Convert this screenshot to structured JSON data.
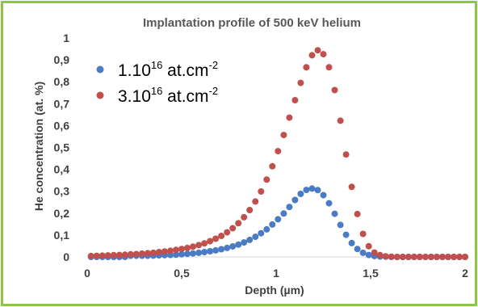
{
  "colors": {
    "frame": "#8dc63f",
    "series1": "#4a7bc4",
    "series2": "#c0504d",
    "axis": "#d9d9d9",
    "text": "#404040"
  },
  "chart_data": {
    "type": "scatter",
    "title": "Implantation profile of 500 keV helium",
    "xlabel": "Depth (µm)",
    "ylabel": "He concentration (at. %)",
    "xlim": [
      0,
      2
    ],
    "ylim": [
      0,
      1
    ],
    "x_ticks": [
      "0",
      "0,5",
      "1",
      "1,5",
      "2"
    ],
    "x_tick_values": [
      0,
      0.5,
      1,
      1.5,
      2
    ],
    "y_ticks": [
      "0",
      "0,1",
      "0,2",
      "0,3",
      "0,4",
      "0,5",
      "0,6",
      "0,7",
      "0,8",
      "0,9",
      "1"
    ],
    "y_tick_values": [
      0,
      0.1,
      0.2,
      0.3,
      0.4,
      0.5,
      0.6,
      0.7,
      0.8,
      0.9,
      1
    ],
    "grid": false,
    "legend_position": "top-left",
    "series": [
      {
        "name": "1.10¹⁶ at.cm⁻²",
        "legend": {
          "base": "1.10",
          "exp": "16",
          "unit": " at.cm",
          "unit_exp": "-2"
        },
        "x": [
          0.02,
          0.05,
          0.08,
          0.11,
          0.14,
          0.17,
          0.2,
          0.23,
          0.26,
          0.29,
          0.32,
          0.35,
          0.38,
          0.41,
          0.44,
          0.47,
          0.5,
          0.53,
          0.56,
          0.59,
          0.62,
          0.65,
          0.68,
          0.71,
          0.74,
          0.77,
          0.8,
          0.83,
          0.86,
          0.89,
          0.92,
          0.95,
          0.98,
          1.01,
          1.04,
          1.07,
          1.1,
          1.13,
          1.16,
          1.19,
          1.22,
          1.25,
          1.28,
          1.31,
          1.34,
          1.37,
          1.4,
          1.43,
          1.46,
          1.49,
          1.52,
          1.55,
          1.58,
          1.61,
          1.64,
          1.67,
          1.7,
          1.73,
          1.76,
          1.79,
          1.82,
          1.85,
          1.88,
          1.91,
          1.94,
          1.97,
          2.0
        ],
        "y": [
          0.0,
          0.0,
          0.0,
          0.0,
          0.0,
          0.0,
          0.0,
          0.005,
          0.005,
          0.005,
          0.005,
          0.006,
          0.007,
          0.008,
          0.009,
          0.01,
          0.012,
          0.014,
          0.016,
          0.019,
          0.022,
          0.026,
          0.03,
          0.035,
          0.041,
          0.048,
          0.056,
          0.066,
          0.078,
          0.092,
          0.108,
          0.126,
          0.148,
          0.172,
          0.198,
          0.228,
          0.26,
          0.288,
          0.306,
          0.312,
          0.305,
          0.282,
          0.245,
          0.197,
          0.146,
          0.101,
          0.063,
          0.036,
          0.019,
          0.009,
          0.004,
          0.002,
          0.001,
          0.0,
          0.0,
          0.0,
          0.0,
          0.0,
          0.0,
          0.0,
          0.0,
          0.0,
          0.0,
          0.0,
          0.0,
          0.0,
          0.0
        ]
      },
      {
        "name": "3.10¹⁶ at.cm⁻²",
        "legend": {
          "base": "3.10",
          "exp": "16",
          "unit": " at.cm",
          "unit_exp": "-2"
        },
        "x": [
          0.02,
          0.05,
          0.08,
          0.11,
          0.14,
          0.17,
          0.2,
          0.23,
          0.26,
          0.29,
          0.32,
          0.35,
          0.38,
          0.41,
          0.44,
          0.47,
          0.5,
          0.53,
          0.56,
          0.59,
          0.62,
          0.65,
          0.68,
          0.71,
          0.74,
          0.77,
          0.8,
          0.83,
          0.86,
          0.89,
          0.92,
          0.95,
          0.98,
          1.01,
          1.04,
          1.07,
          1.1,
          1.13,
          1.16,
          1.19,
          1.22,
          1.25,
          1.28,
          1.31,
          1.34,
          1.37,
          1.4,
          1.43,
          1.46,
          1.49,
          1.52,
          1.55,
          1.58,
          1.61,
          1.64,
          1.67,
          1.7,
          1.73,
          1.76,
          1.79,
          1.82,
          1.85,
          1.88,
          1.91,
          1.94,
          1.97,
          2.0
        ],
        "y": [
          0.004,
          0.005,
          0.006,
          0.007,
          0.008,
          0.009,
          0.01,
          0.012,
          0.013,
          0.015,
          0.017,
          0.019,
          0.022,
          0.025,
          0.028,
          0.032,
          0.036,
          0.041,
          0.047,
          0.054,
          0.062,
          0.072,
          0.083,
          0.096,
          0.112,
          0.131,
          0.154,
          0.181,
          0.214,
          0.253,
          0.299,
          0.353,
          0.414,
          0.483,
          0.557,
          0.636,
          0.716,
          0.795,
          0.866,
          0.921,
          0.944,
          0.926,
          0.866,
          0.762,
          0.622,
          0.468,
          0.32,
          0.196,
          0.105,
          0.049,
          0.02,
          0.008,
          0.003,
          0.001,
          0.0,
          0.0,
          0.0,
          0.0,
          0.0,
          0.0,
          0.0,
          0.0,
          0.0,
          0.0,
          0.0,
          0.0,
          0.0
        ]
      }
    ]
  }
}
